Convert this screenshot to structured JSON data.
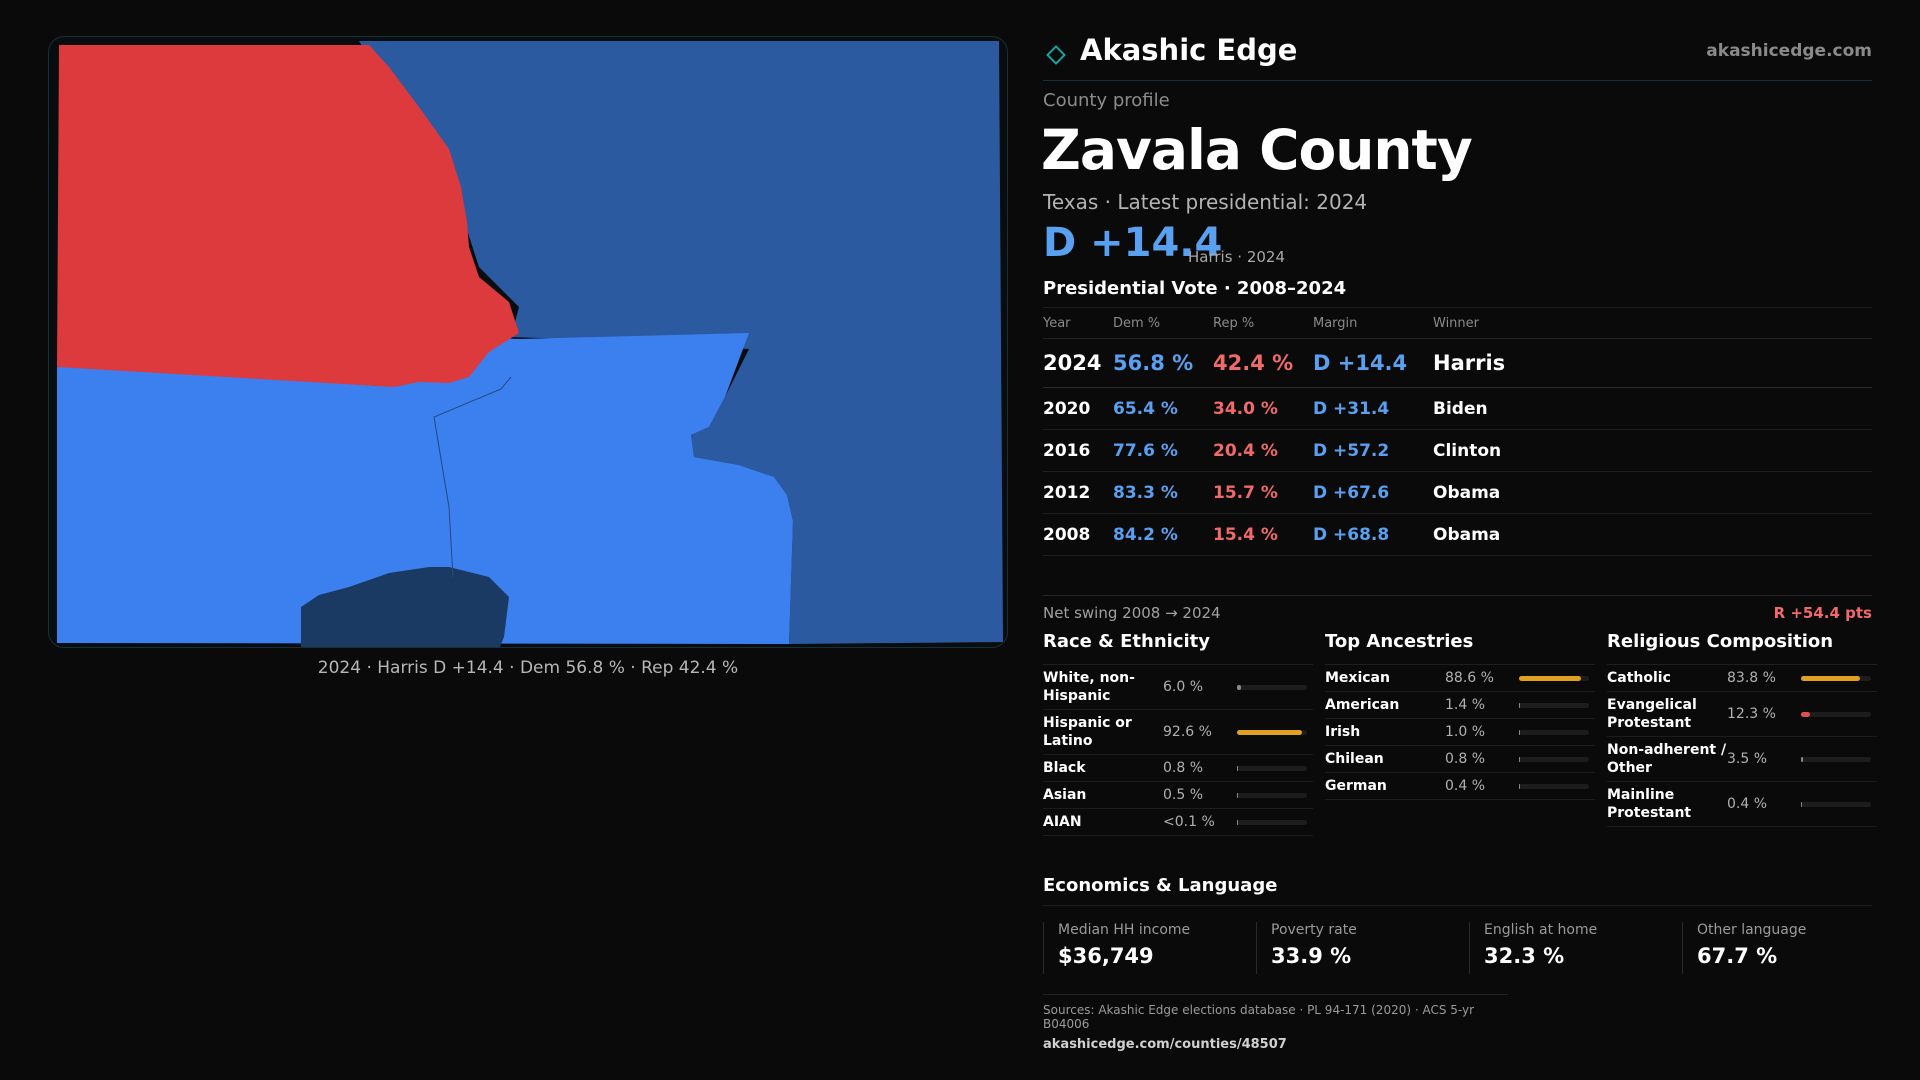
{
  "brand": {
    "name": "Akashic Edge",
    "url": "akashicedge.com"
  },
  "profile": {
    "eyebrow": "County profile",
    "county": "Zavala County",
    "subtitle": "Texas · Latest presidential: 2024",
    "margin_big": "D +14.4",
    "margin_note": "Harris · 2024"
  },
  "map": {
    "caption": "2024 · Harris D +14.4 · Dem 56.8 % · Rep 42.4 %",
    "colors": {
      "rep": "#dc3a3c",
      "dem_light": "#3b80ee",
      "dem_mid": "#2c5aa0",
      "dem_dark": "#1b3a63"
    }
  },
  "vote": {
    "title": "Presidential Vote · 2008–2024",
    "headers": [
      "Year",
      "Dem %",
      "Rep %",
      "Margin",
      "Winner"
    ],
    "rows": [
      {
        "year": "2024",
        "dem": "56.8 %",
        "rep": "42.4 %",
        "margin": "D +14.4",
        "winner": "Harris"
      },
      {
        "year": "2020",
        "dem": "65.4 %",
        "rep": "34.0 %",
        "margin": "D +31.4",
        "winner": "Biden"
      },
      {
        "year": "2016",
        "dem": "77.6 %",
        "rep": "20.4 %",
        "margin": "D +57.2",
        "winner": "Clinton"
      },
      {
        "year": "2012",
        "dem": "83.3 %",
        "rep": "15.7 %",
        "margin": "D +67.6",
        "winner": "Obama"
      },
      {
        "year": "2008",
        "dem": "84.2 %",
        "rep": "15.4 %",
        "margin": "D +68.8",
        "winner": "Obama"
      }
    ]
  },
  "swing": {
    "label": "Net swing 2008 → 2024",
    "value": "R +54.4 pts"
  },
  "race": {
    "title": "Race & Ethnicity",
    "items": [
      {
        "label": "White, non-Hispanic",
        "value": "6.0 %",
        "pct": 6.0
      },
      {
        "label": "Hispanic or Latino",
        "value": "92.6 %",
        "pct": 92.6
      },
      {
        "label": "Black",
        "value": "0.8 %",
        "pct": 0.8
      },
      {
        "label": "Asian",
        "value": "0.5 %",
        "pct": 0.5
      },
      {
        "label": "AIAN",
        "value": "<0.1 %",
        "pct": 0.05
      }
    ]
  },
  "ancestry": {
    "title": "Top Ancestries",
    "items": [
      {
        "label": "Mexican",
        "value": "88.6 %",
        "pct": 88.6
      },
      {
        "label": "American",
        "value": "1.4 %",
        "pct": 1.4
      },
      {
        "label": "Irish",
        "value": "1.0 %",
        "pct": 1.0
      },
      {
        "label": "Chilean",
        "value": "0.8 %",
        "pct": 0.8
      },
      {
        "label": "German",
        "value": "0.4 %",
        "pct": 0.4
      }
    ]
  },
  "religion": {
    "title": "Religious Composition",
    "items": [
      {
        "label": "Catholic",
        "value": "83.8 %",
        "pct": 83.8
      },
      {
        "label": "Evangelical Protestant",
        "value": "12.3 %",
        "pct": 12.3
      },
      {
        "label": "Non-adherent / Other",
        "value": "3.5 %",
        "pct": 3.5
      },
      {
        "label": "Mainline Protestant",
        "value": "0.4 %",
        "pct": 0.4
      }
    ]
  },
  "economics": {
    "title": "Economics & Language",
    "cards": [
      {
        "label": "Median HH income",
        "value": "$36,749"
      },
      {
        "label": "Poverty rate",
        "value": "33.9 %"
      },
      {
        "label": "English at home",
        "value": "32.3 %"
      },
      {
        "label": "Other language",
        "value": "67.7 %"
      }
    ]
  },
  "footer": {
    "sources": "Sources: Akashic Edge elections database · PL 94-171 (2020) · ACS 5-yr B04006",
    "url": "akashicedge.com/counties/48507"
  },
  "bar_colors": {
    "amber": "#e0a020",
    "red": "#e05050",
    "muted": "#8a8a8a"
  }
}
